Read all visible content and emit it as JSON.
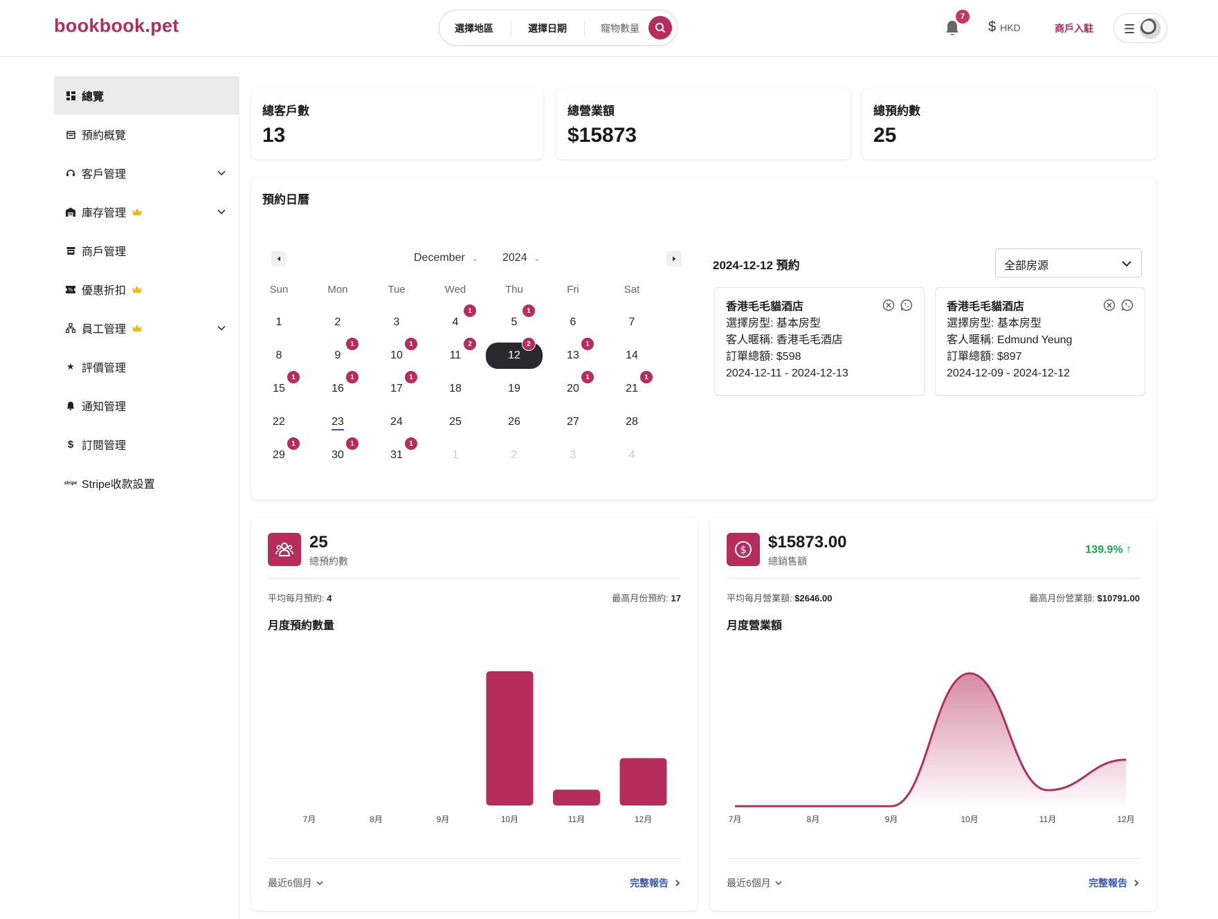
{
  "brand": {
    "logo": "bookbook.pet",
    "accent": "#b52d5b"
  },
  "search": {
    "region_label": "選擇地區",
    "date_label": "選擇日期",
    "pets_label": "寵物數量"
  },
  "header": {
    "notification_count": "7",
    "currency": "HKD",
    "merchant_link": "商戶入駐"
  },
  "sidebar": {
    "items": [
      {
        "label": "總覽",
        "icon": "dashboard-icon",
        "active": true
      },
      {
        "label": "預約概覽",
        "icon": "calendar-icon"
      },
      {
        "label": "客戶管理",
        "icon": "headset-icon",
        "expandable": true
      },
      {
        "label": "庫存管理",
        "icon": "warehouse-icon",
        "premium": true,
        "expandable": true
      },
      {
        "label": "商戶管理",
        "icon": "store-icon"
      },
      {
        "label": "優惠折扣",
        "icon": "ticket-icon",
        "premium": true
      },
      {
        "label": "員工管理",
        "icon": "org-chart-icon",
        "premium": true,
        "expandable": true
      },
      {
        "label": "評價管理",
        "icon": "star-icon"
      },
      {
        "label": "通知管理",
        "icon": "bell-icon"
      },
      {
        "label": "訂閱管理",
        "icon": "dollar-icon"
      },
      {
        "label": "Stripe收款設置",
        "icon": "stripe-icon"
      }
    ]
  },
  "stats": [
    {
      "title": "總客戶數",
      "value": "13"
    },
    {
      "title": "總營業額",
      "value": "$15873"
    },
    {
      "title": "總預約數",
      "value": "25"
    }
  ],
  "calendar": {
    "title": "預約日曆",
    "month": "December",
    "year": "2024",
    "weekdays": [
      "Sun",
      "Mon",
      "Tue",
      "Wed",
      "Thu",
      "Fri",
      "Sat"
    ],
    "weeks": [
      [
        {
          "d": "1"
        },
        {
          "d": "2"
        },
        {
          "d": "3"
        },
        {
          "d": "4",
          "b": "1"
        },
        {
          "d": "5",
          "b": "1"
        },
        {
          "d": "6"
        },
        {
          "d": "7"
        }
      ],
      [
        {
          "d": "8"
        },
        {
          "d": "9",
          "b": "1"
        },
        {
          "d": "10",
          "b": "1"
        },
        {
          "d": "11",
          "b": "2"
        },
        {
          "d": "12",
          "b": "2",
          "selected": true
        },
        {
          "d": "13",
          "b": "1"
        },
        {
          "d": "14"
        }
      ],
      [
        {
          "d": "15",
          "b": "1"
        },
        {
          "d": "16",
          "b": "1"
        },
        {
          "d": "17",
          "b": "1"
        },
        {
          "d": "18"
        },
        {
          "d": "19"
        },
        {
          "d": "20",
          "b": "1"
        },
        {
          "d": "21",
          "b": "1"
        }
      ],
      [
        {
          "d": "22"
        },
        {
          "d": "23",
          "today": true
        },
        {
          "d": "24"
        },
        {
          "d": "25"
        },
        {
          "d": "26"
        },
        {
          "d": "27"
        },
        {
          "d": "28"
        }
      ],
      [
        {
          "d": "29",
          "b": "1"
        },
        {
          "d": "30",
          "b": "1"
        },
        {
          "d": "31",
          "b": "1"
        },
        {
          "d": "1",
          "muted": true
        },
        {
          "d": "2",
          "muted": true
        },
        {
          "d": "3",
          "muted": true
        },
        {
          "d": "4",
          "muted": true
        }
      ]
    ],
    "bookings_heading": "2024-12-12 預約",
    "room_filter": "全部房源",
    "bookings": [
      {
        "name": "香港毛毛貓酒店",
        "room": "選擇房型: 基本房型",
        "guest": "客人暱稱: 香港毛毛酒店",
        "total": "訂單總額: $598",
        "dates": "2024-12-11 - 2024-12-13"
      },
      {
        "name": "香港毛毛貓酒店",
        "room": "選擇房型: 基本房型",
        "guest": "客人暱稱: Edmund Yeung",
        "total": "訂單總額: $897",
        "dates": "2024-12-09 - 2024-12-12"
      }
    ]
  },
  "bookings_panel": {
    "value": "25",
    "label": "總預約數",
    "avg_label": "平均每月預約:",
    "avg_value": "4",
    "max_label": "最高月份預約:",
    "max_value": "17",
    "chart_title": "月度預約數量",
    "period": "最近6個月",
    "report_link": "完整報告"
  },
  "sales_panel": {
    "value": "$15873.00",
    "label": "總銷售額",
    "change": "139.9% ↑",
    "avg_label": "平均每月營業額:",
    "avg_value": "$2646.00",
    "max_label": "最高月份營業額:",
    "max_value": "$10791.00",
    "chart_title": "月度營業額",
    "period": "最近6個月",
    "report_link": "完整報告"
  },
  "chart_data": [
    {
      "type": "bar",
      "title": "月度預約數量",
      "categories": [
        "7月",
        "8月",
        "9月",
        "10月",
        "11月",
        "12月"
      ],
      "values": [
        0,
        0,
        0,
        17,
        2,
        6
      ],
      "color": "#b52d5b",
      "grid": false
    },
    {
      "type": "area",
      "title": "月度營業額",
      "categories": [
        "7月",
        "8月",
        "9月",
        "10月",
        "11月",
        "12月"
      ],
      "values": [
        0,
        0,
        0,
        10791,
        1300,
        3782
      ],
      "color": "#b52d5b",
      "grid": false
    }
  ]
}
